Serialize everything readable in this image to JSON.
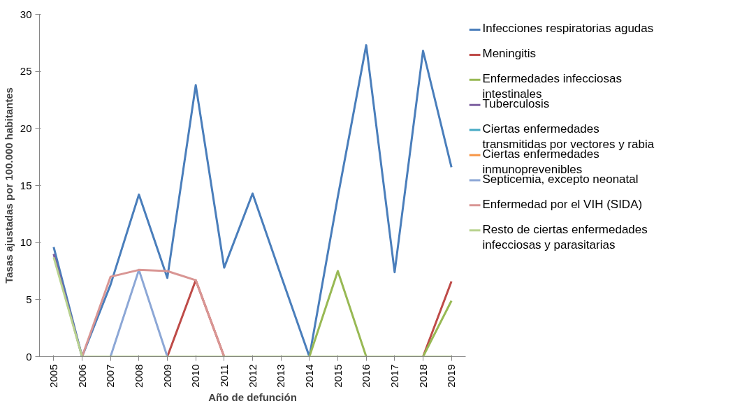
{
  "chart_data": {
    "type": "line",
    "xlabel": "Año de defunción",
    "ylabel": "Tasas ajustadas por 100.000 habitantes",
    "categories": [
      "2005",
      "2006",
      "2007",
      "2008",
      "2009",
      "2010",
      "2011",
      "2012",
      "2013",
      "2014",
      "2015",
      "2016",
      "2017",
      "2018",
      "2019"
    ],
    "ylim": [
      0,
      30
    ],
    "yticks": [
      0,
      5,
      10,
      15,
      20,
      25,
      30
    ],
    "grid": false,
    "legend": "right",
    "marker": "none",
    "line_style": "solid",
    "series": [
      {
        "name": "Infecciones respiratorias agudas",
        "color": "#4a7ebb",
        "values": [
          9.6,
          0,
          6.3,
          14.2,
          6.9,
          23.8,
          7.8,
          14.3,
          7.1,
          0,
          14.0,
          27.3,
          7.4,
          26.8,
          16.6
        ]
      },
      {
        "name": "Meningitis",
        "color": "#be4b48",
        "values": [
          null,
          null,
          null,
          null,
          0,
          6.7,
          0,
          null,
          null,
          null,
          null,
          null,
          null,
          0,
          6.6
        ]
      },
      {
        "name": "Enfermedades infecciosas intestinales",
        "color": "#98b954",
        "values": [
          null,
          null,
          null,
          null,
          null,
          null,
          null,
          null,
          null,
          0,
          7.5,
          0,
          null,
          0,
          4.9
        ]
      },
      {
        "name": "Tuberculosis",
        "color": "#7d60a0",
        "values": [
          9.0,
          0,
          null,
          null,
          null,
          null,
          null,
          null,
          null,
          null,
          null,
          null,
          null,
          null,
          null
        ]
      },
      {
        "name": "Ciertas enfermedades transmitidas por vectores y rabia",
        "color": "#46aac5",
        "values": [
          null,
          null,
          null,
          null,
          null,
          null,
          null,
          null,
          null,
          null,
          null,
          null,
          null,
          null,
          null
        ]
      },
      {
        "name": "Ciertas enfermedades inmunoprevenibles",
        "color": "#f79646",
        "values": [
          null,
          null,
          null,
          null,
          null,
          null,
          null,
          null,
          null,
          null,
          null,
          null,
          null,
          null,
          null
        ]
      },
      {
        "name": "Septicemia, excepto neonatal",
        "color": "#8ca7d6",
        "values": [
          null,
          null,
          0,
          7.6,
          0,
          null,
          null,
          null,
          null,
          null,
          null,
          null,
          null,
          null,
          null
        ]
      },
      {
        "name": "Enfermedad por el VIH (SIDA)",
        "color": "#d99694",
        "values": [
          null,
          0,
          7.0,
          7.6,
          7.5,
          6.7,
          0,
          null,
          null,
          null,
          null,
          null,
          null,
          null,
          null
        ]
      },
      {
        "name": "Resto de ciertas enfermedades infecciosas y parasitarias",
        "color": "#b9d38f",
        "values": [
          8.7,
          0,
          0,
          0,
          0,
          0,
          0,
          0,
          0,
          0,
          0,
          0,
          0,
          0,
          0
        ]
      }
    ]
  }
}
